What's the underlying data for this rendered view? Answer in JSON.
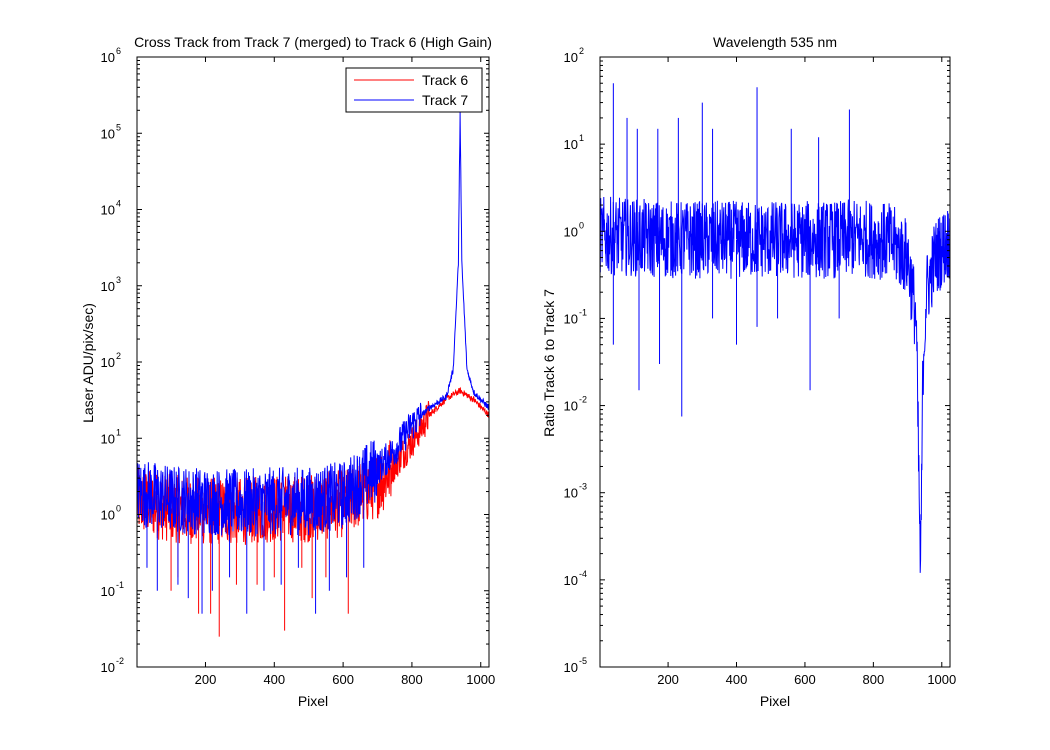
{
  "chart_data": [
    {
      "type": "line",
      "title": "Cross Track from Track 7 (merged) to Track 6 (High Gain)",
      "xlabel": "Pixel",
      "ylabel": "Laser ADU/pix/sec)",
      "xlim": [
        1,
        1024
      ],
      "ylim": [
        0.01,
        1000000
      ],
      "yscale": "log",
      "xticks": [
        "200",
        "400",
        "600",
        "800",
        "1000"
      ],
      "ytick_base": "10",
      "ytick_exponents": [
        "-2",
        "-1",
        "0",
        "1",
        "2",
        "3",
        "4",
        "5",
        "6"
      ],
      "legend_position": "top-right",
      "grid": false,
      "series": [
        {
          "name": "Track 6",
          "color": "#ff0000",
          "envelope_x": [
            1,
            100,
            200,
            300,
            400,
            500,
            600,
            700,
            750,
            800,
            850,
            900,
            940,
            980,
            1024
          ],
          "envelope_y": [
            1.5,
            1.2,
            1.1,
            1.1,
            1.2,
            1.2,
            1.4,
            2.5,
            4.5,
            9,
            20,
            33,
            42,
            32,
            20
          ],
          "dips_x": [
            100,
            120,
            180,
            215,
            240,
            290,
            350,
            400,
            430,
            480,
            510,
            550,
            615
          ],
          "dips_y": [
            0.1,
            0.15,
            0.05,
            0.05,
            0.025,
            0.12,
            0.12,
            0.15,
            0.03,
            0.2,
            0.08,
            0.15,
            0.05
          ]
        },
        {
          "name": "Track 7",
          "color": "#0000ff",
          "envelope_x": [
            1,
            100,
            200,
            300,
            400,
            500,
            600,
            700,
            750,
            800,
            850,
            900,
            920,
            935,
            940,
            945,
            960,
            980,
            1024
          ],
          "envelope_y": [
            2,
            1.6,
            1.5,
            1.4,
            1.5,
            1.5,
            1.8,
            4,
            7,
            15,
            25,
            35,
            80,
            2000,
            200000,
            2000,
            80,
            40,
            25
          ],
          "dips_x": [
            30,
            60,
            120,
            150,
            190,
            220,
            270,
            320,
            370,
            420,
            470,
            520,
            560,
            610,
            660
          ],
          "dips_y": [
            0.2,
            0.1,
            0.12,
            0.08,
            0.05,
            0.1,
            0.15,
            0.05,
            0.1,
            0.12,
            0.2,
            0.05,
            0.1,
            0.15,
            0.2
          ]
        }
      ]
    },
    {
      "type": "line",
      "title": "Wavelength 535 nm",
      "xlabel": "Pixel",
      "ylabel": "Ratio Track 6 to Track 7",
      "xlim": [
        1,
        1024
      ],
      "ylim": [
        1e-05,
        100
      ],
      "yscale": "log",
      "xticks": [
        "200",
        "400",
        "600",
        "800",
        "1000"
      ],
      "ytick_base": "10",
      "ytick_exponents": [
        "-5",
        "-4",
        "-3",
        "-2",
        "-1",
        "0",
        "1",
        "2"
      ],
      "grid": false,
      "series": [
        {
          "color": "#0000ff",
          "envelope_x": [
            1,
            100,
            200,
            300,
            400,
            500,
            600,
            700,
            760,
            800,
            850,
            900,
            925,
            938,
            945,
            955,
            980,
            1024
          ],
          "envelope_y": [
            0.9,
            0.85,
            0.8,
            0.8,
            0.8,
            0.8,
            0.8,
            0.8,
            0.85,
            0.8,
            0.75,
            0.5,
            0.1,
            0.0001,
            0.03,
            0.2,
            0.5,
            0.8
          ],
          "spikes_x": [
            40,
            80,
            110,
            170,
            230,
            300,
            330,
            460,
            560,
            640,
            730
          ],
          "spikes_y": [
            50,
            20,
            15,
            15,
            20,
            30,
            15,
            45,
            15,
            12,
            25
          ],
          "dips_x": [
            40,
            115,
            175,
            240,
            330,
            400,
            460,
            520,
            615,
            700
          ],
          "dips_y": [
            0.05,
            0.015,
            0.03,
            0.0075,
            0.1,
            0.05,
            0.08,
            0.1,
            0.015,
            0.1
          ]
        }
      ]
    }
  ]
}
